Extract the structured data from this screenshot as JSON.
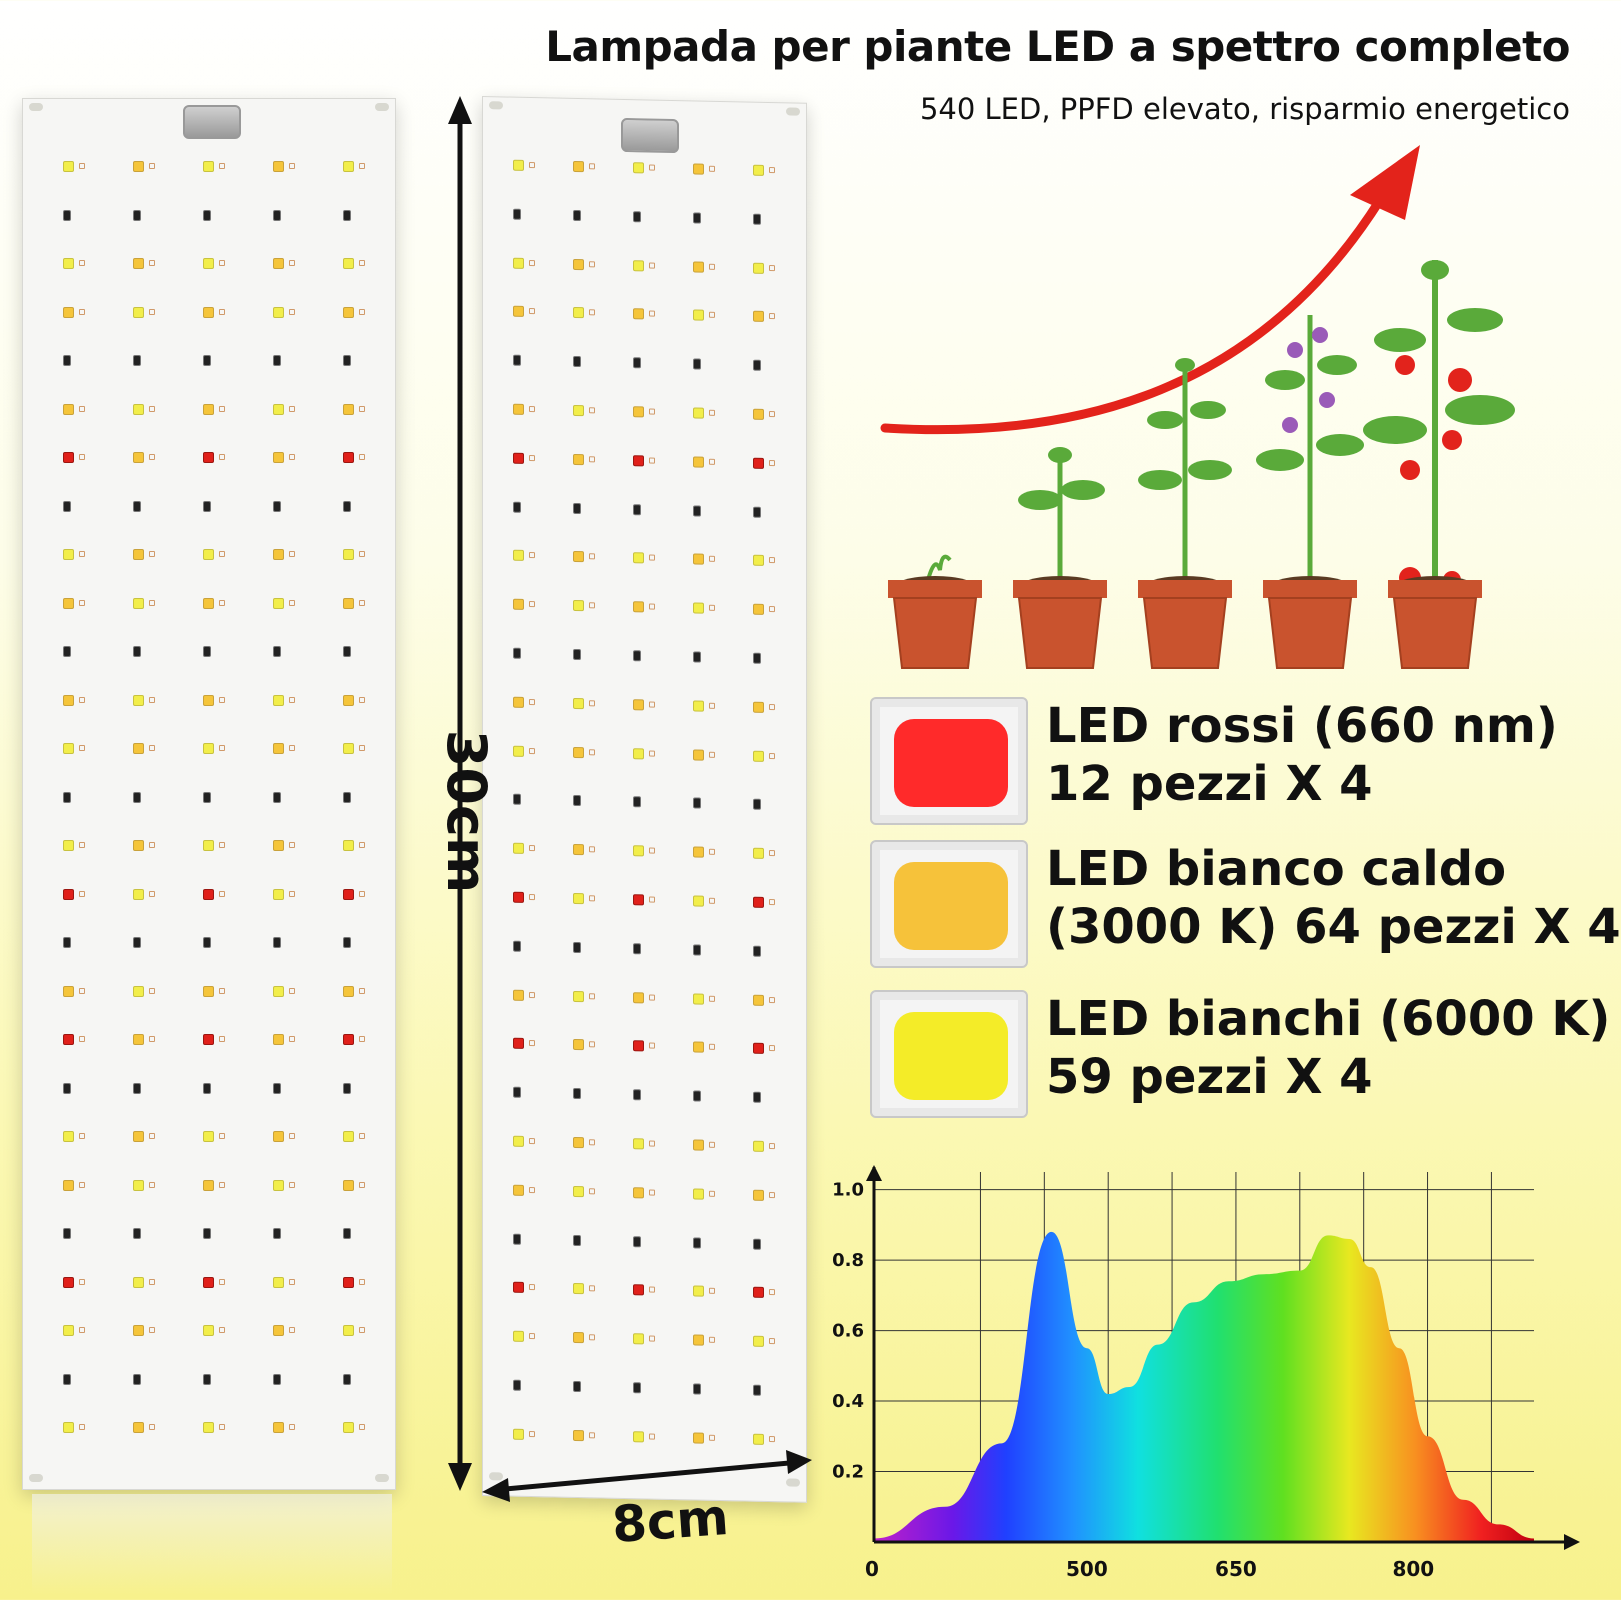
{
  "header": {
    "title": "Lampada per piante LED a spettro completo",
    "subtitle": "540 LED, PPFD elevato, risparmio energetico"
  },
  "dimensions": {
    "height_label": "30cm",
    "width_label": "8cm"
  },
  "legend": [
    {
      "line1": "LED rossi (660 nm)",
      "line2": "12 pezzi X 4",
      "color": "#ff2a2a"
    },
    {
      "line1": "LED bianco caldo",
      "line2": "(3000 K) 64 pezzi X 4",
      "color": "#f6c23a"
    },
    {
      "line1": "LED bianchi (6000 K)",
      "line2": "59 pezzi X 4",
      "color": "#f4ec28"
    }
  ],
  "colors": {
    "arrow": "#e3231b",
    "pot": "#c9532e",
    "leaf": "#5aaa3a",
    "fruit": "#e2231c"
  },
  "chart_data": {
    "type": "area",
    "title": "",
    "xlabel": "",
    "ylabel": "",
    "x_ticks": [
      "0",
      "500",
      "650",
      "800"
    ],
    "y_ticks": [
      "1.0",
      "0.8",
      "0.6",
      "0.4",
      "0.2"
    ],
    "ylim": [
      0,
      1.05
    ],
    "grid": true,
    "series": [
      {
        "x": [
          0,
          100,
          180,
          250,
          300,
          330,
          360,
          400,
          450,
          500,
          550,
          600,
          640,
          670,
          700,
          740,
          780,
          830,
          880,
          930
        ],
        "values": [
          0.01,
          0.1,
          0.28,
          0.88,
          0.55,
          0.42,
          0.44,
          0.56,
          0.68,
          0.74,
          0.76,
          0.77,
          0.87,
          0.86,
          0.78,
          0.55,
          0.3,
          0.12,
          0.05,
          0.01
        ]
      }
    ]
  }
}
